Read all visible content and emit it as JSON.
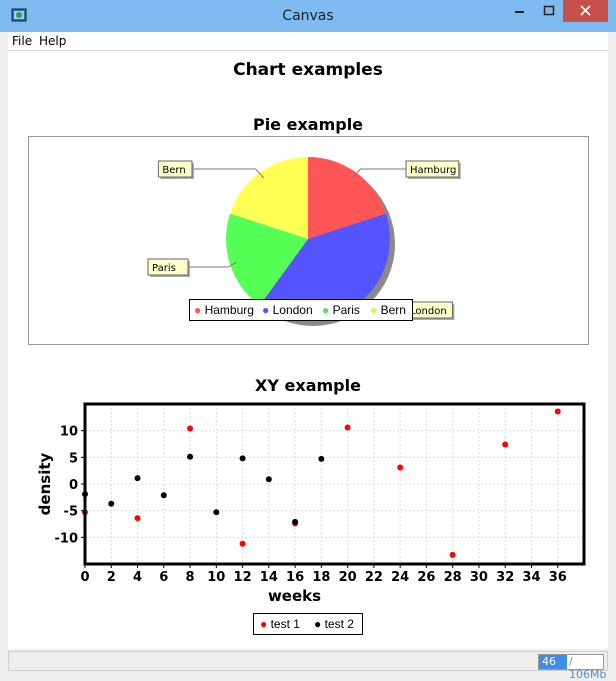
{
  "window": {
    "title": "Canvas"
  },
  "menu": {
    "items": [
      "File",
      "Help"
    ]
  },
  "page": {
    "title": "Chart examples"
  },
  "colors": {
    "hamburg": "#ff5555",
    "london": "#5555ff",
    "paris": "#55ff55",
    "bern": "#ffff55",
    "test1": "#ff0000",
    "test2": "#000000"
  },
  "chart_data": [
    {
      "type": "pie",
      "title": "Pie example",
      "categories": [
        "Hamburg",
        "London",
        "Paris",
        "Bern"
      ],
      "values": [
        20,
        40,
        20,
        20
      ],
      "legend": "bottom"
    },
    {
      "type": "scatter",
      "title": "XY example",
      "xlabel": "weeks",
      "ylabel": "density",
      "xlim": [
        0,
        38
      ],
      "ylim": [
        -15,
        15
      ],
      "xticks": [
        0,
        2,
        4,
        6,
        8,
        10,
        12,
        14,
        16,
        18,
        20,
        22,
        24,
        26,
        28,
        30,
        32,
        34,
        36
      ],
      "yticks": [
        -10,
        -5,
        0,
        5,
        10
      ],
      "grid": true,
      "legend": "bottom",
      "series": [
        {
          "name": "test 1",
          "x": [
            0,
            4,
            8,
            12,
            16,
            20,
            24,
            28,
            32,
            36
          ],
          "y": [
            -5.3,
            -6.4,
            10.4,
            -11.2,
            -7.4,
            10.6,
            3.1,
            -13.3,
            7.4,
            13.6
          ]
        },
        {
          "name": "test 2",
          "x": [
            0,
            2,
            4,
            6,
            8,
            10,
            12,
            14,
            16,
            18
          ],
          "y": [
            -1.9,
            -3.7,
            1.1,
            -2.1,
            5.1,
            -5.3,
            4.8,
            0.9,
            -7.1,
            4.7
          ]
        }
      ]
    }
  ],
  "status": {
    "memory_used": "46",
    "memory_total": "/ 106Mb"
  }
}
